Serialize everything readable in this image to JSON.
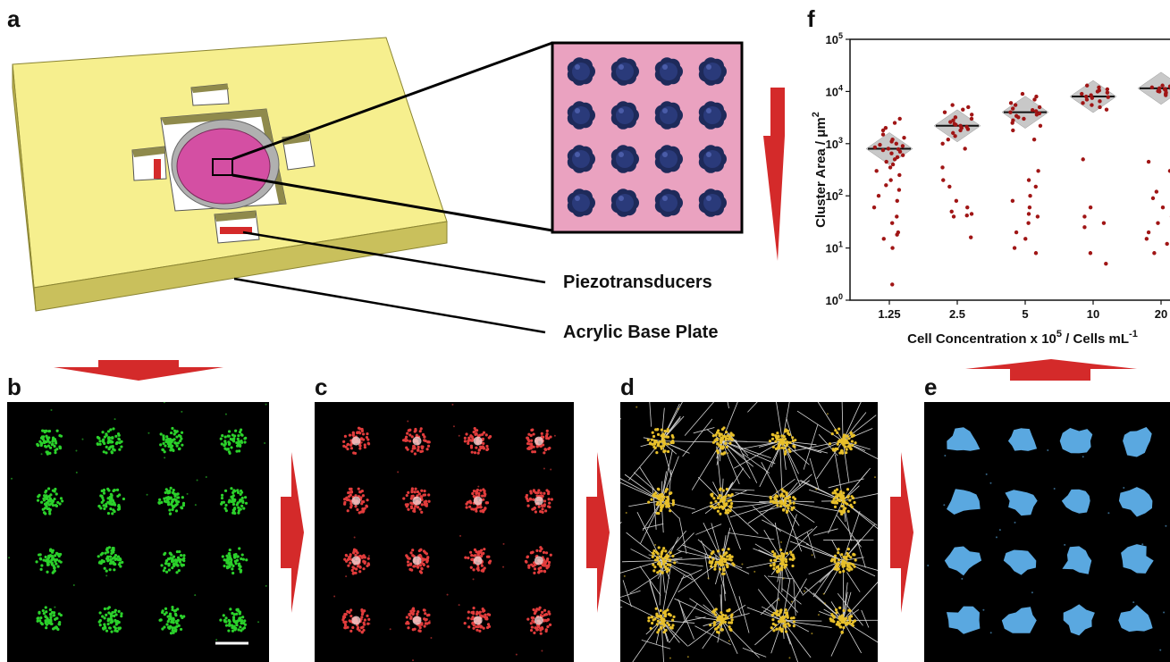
{
  "panels": {
    "a": "a",
    "b": "b",
    "c": "c",
    "d": "d",
    "e": "e",
    "f": "f"
  },
  "callouts": {
    "piezo": "Piezotransducers",
    "base": "Acrylic Base Plate"
  },
  "colors": {
    "plate": "#f6ef8e",
    "plate_side": "#c9c05c",
    "dish": "#d44fa3",
    "arrow": "#d42a2a",
    "cells_b": "#2bd12b",
    "cells_c": "#e23c3c",
    "cells_d": "#e8c02a",
    "cells_e": "#5aa8e0",
    "points": "#a01515",
    "violin": "#c8c8c8"
  },
  "chart_data": {
    "type": "scatter",
    "xlabel_main": "Cell Concentration x 10",
    "xlabel_sup": "5",
    "xlabel_tail": " / Cells mL",
    "xlabel_sup2": "-1",
    "ylabel_main": "Cluster Area / μm",
    "ylabel_sup": "2",
    "y_scale": "log",
    "ylim": [
      1,
      100000
    ],
    "y_ticks": [
      {
        "base": "10",
        "exp": "0",
        "value": 1
      },
      {
        "base": "10",
        "exp": "1",
        "value": 10
      },
      {
        "base": "10",
        "exp": "2",
        "value": 100
      },
      {
        "base": "10",
        "exp": "3",
        "value": 1000
      },
      {
        "base": "10",
        "exp": "4",
        "value": 10000
      },
      {
        "base": "10",
        "exp": "5",
        "value": 100000
      }
    ],
    "categories": [
      "1.25",
      "2.5",
      "5",
      "10",
      "20"
    ],
    "medians": [
      800,
      2200,
      4000,
      8000,
      11500
    ],
    "series": [
      {
        "values": [
          3000,
          2500,
          2000,
          1800,
          1500,
          1300,
          1200,
          1100,
          1000,
          950,
          900,
          850,
          800,
          780,
          750,
          700,
          650,
          600,
          550,
          500,
          450,
          400,
          350,
          300,
          250,
          200,
          160,
          130,
          100,
          80,
          60,
          40,
          30,
          20,
          18,
          15,
          10,
          2
        ]
      },
      {
        "values": [
          5500,
          5000,
          4500,
          4000,
          3600,
          3200,
          3000,
          2800,
          2600,
          2400,
          2300,
          2200,
          2100,
          2000,
          1900,
          1800,
          1600,
          1400,
          1200,
          1000,
          800,
          350,
          200,
          150,
          80,
          60,
          50,
          45,
          42,
          40,
          16
        ]
      },
      {
        "values": [
          9000,
          8000,
          7000,
          6000,
          5500,
          5000,
          4700,
          4400,
          4200,
          4000,
          3800,
          3600,
          3400,
          3200,
          3000,
          2800,
          2500,
          2200,
          1800,
          1200,
          300,
          200,
          150,
          100,
          80,
          60,
          45,
          40,
          30,
          20,
          15,
          10,
          8
        ]
      },
      {
        "values": [
          13000,
          12000,
          11000,
          10500,
          10000,
          9500,
          9000,
          8500,
          8000,
          7800,
          7500,
          7000,
          6500,
          6000,
          5500,
          5000,
          4500,
          500,
          60,
          40,
          30,
          25,
          8,
          5
        ]
      },
      {
        "values": [
          13000,
          12800,
          12500,
          12200,
          12000,
          11800,
          11500,
          11200,
          11000,
          10800,
          10500,
          10200,
          10000,
          9500,
          9000,
          8500,
          450,
          300,
          150,
          120,
          90,
          60,
          40,
          30,
          20,
          15,
          12,
          10,
          8
        ]
      }
    ]
  }
}
